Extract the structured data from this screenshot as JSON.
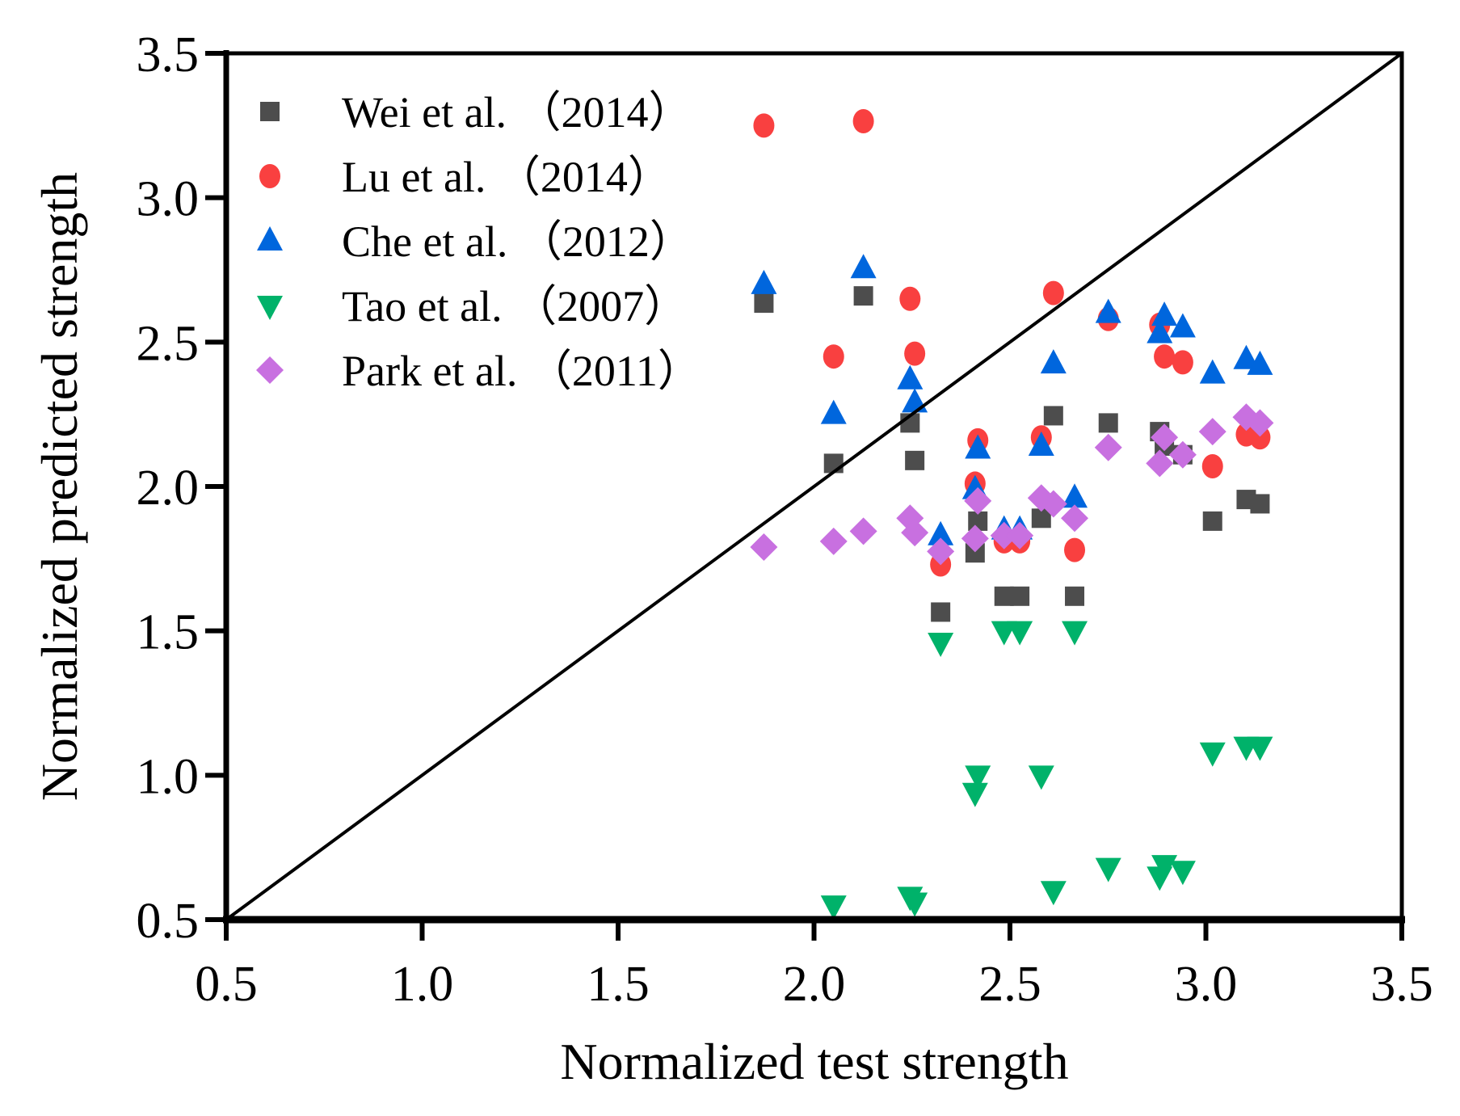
{
  "chart_data": {
    "type": "scatter",
    "title": "",
    "xlabel": "Normalized test strength",
    "ylabel": "Normalized predicted strength",
    "xlim": [
      0.5,
      3.5
    ],
    "ylim": [
      0.5,
      3.5
    ],
    "xticks": [
      "0.5",
      "1.0",
      "1.5",
      "2.0",
      "2.5",
      "3.0",
      "3.5"
    ],
    "yticks": [
      "0.5",
      "1.0",
      "1.5",
      "2.0",
      "2.5",
      "3.0",
      "3.5"
    ],
    "grid": false,
    "legend_position": "top-left",
    "reference_line": {
      "type": "y=x",
      "from": [
        0.5,
        0.5
      ],
      "to": [
        3.5,
        3.5
      ]
    },
    "x": [
      1.872,
      2.05,
      2.126,
      2.245,
      2.257,
      2.323,
      2.411,
      2.418,
      2.485,
      2.525,
      2.58,
      2.611,
      2.665,
      2.751,
      2.882,
      2.894,
      2.941,
      3.017,
      3.103,
      3.138
    ],
    "series": [
      {
        "name": "Wei et al. （2014）",
        "marker": "square",
        "color": "#4d4d4d",
        "values": [
          2.635,
          2.08,
          2.66,
          2.22,
          2.09,
          1.565,
          1.77,
          1.88,
          1.62,
          1.62,
          1.89,
          2.245,
          1.62,
          2.22,
          2.19,
          2.14,
          2.11,
          1.88,
          1.955,
          1.94
        ]
      },
      {
        "name": "Lu et al. （2014）",
        "marker": "circle",
        "color": "#f94040",
        "values": [
          3.25,
          2.45,
          3.265,
          2.65,
          2.46,
          1.73,
          2.01,
          2.16,
          1.81,
          1.81,
          2.17,
          2.67,
          1.78,
          2.58,
          2.56,
          2.45,
          2.43,
          2.07,
          2.18,
          2.17
        ]
      },
      {
        "name": "Che et al. （2012）",
        "marker": "triangle-up",
        "color": "#0066dd",
        "values": [
          2.7,
          2.25,
          2.755,
          2.37,
          2.29,
          1.83,
          1.99,
          2.13,
          1.85,
          1.85,
          2.14,
          2.425,
          1.96,
          2.6,
          2.53,
          2.59,
          2.55,
          2.39,
          2.44,
          2.42
        ]
      },
      {
        "name": "Tao et al. （2007）",
        "marker": "triangle-down",
        "color": "#00b26a",
        "values": [
          null,
          0.55,
          null,
          0.58,
          0.56,
          1.46,
          0.94,
          1.0,
          1.5,
          1.5,
          1.0,
          0.6,
          1.5,
          0.68,
          0.65,
          0.69,
          0.67,
          1.08,
          1.1,
          1.1
        ]
      },
      {
        "name": "Park et al. （2011）",
        "marker": "diamond",
        "color": "#c870e0",
        "values": [
          1.79,
          1.81,
          1.845,
          1.89,
          1.84,
          1.775,
          1.82,
          1.95,
          1.83,
          1.83,
          1.96,
          1.94,
          1.89,
          2.135,
          2.08,
          2.17,
          2.11,
          2.19,
          2.24,
          2.22
        ]
      }
    ]
  }
}
